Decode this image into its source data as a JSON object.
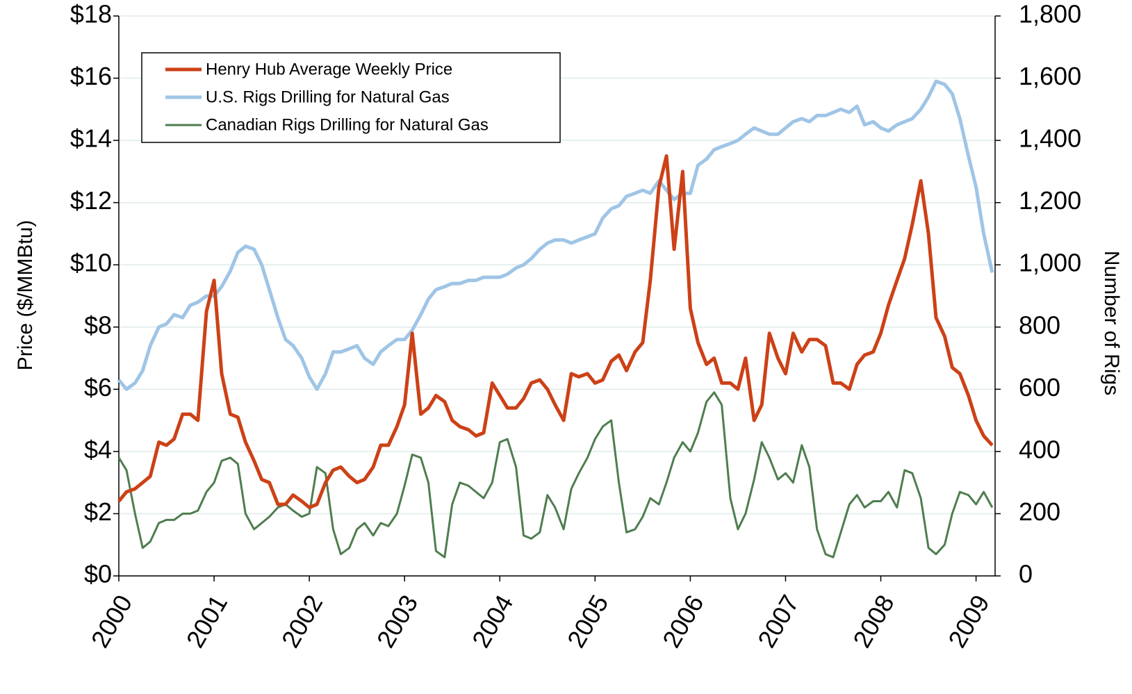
{
  "chart_data": {
    "type": "line",
    "ylabel": "Price ($/MMBtu)",
    "y2label": "Number of Rigs",
    "xlim": [
      2000,
      2009.2
    ],
    "xticks": [
      2000,
      2001,
      2002,
      2003,
      2004,
      2005,
      2006,
      2007,
      2008,
      2009
    ],
    "ylim": [
      0,
      18
    ],
    "yticks": [
      {
        "value": 0,
        "label": "$0"
      },
      {
        "value": 2,
        "label": "$2"
      },
      {
        "value": 4,
        "label": "$4"
      },
      {
        "value": 6,
        "label": "$6"
      },
      {
        "value": 8,
        "label": "$8"
      },
      {
        "value": 10,
        "label": "$10"
      },
      {
        "value": 12,
        "label": "$12"
      },
      {
        "value": 14,
        "label": "$14"
      },
      {
        "value": 16,
        "label": "$16"
      },
      {
        "value": 18,
        "label": "$18"
      }
    ],
    "y2lim": [
      0,
      1800
    ],
    "y2ticks": [
      0,
      200,
      400,
      600,
      800,
      {
        "value": 1000,
        "label": "1,000"
      },
      {
        "value": 1200,
        "label": "1,200"
      },
      {
        "value": 1400,
        "label": "1,400"
      },
      {
        "value": 1600,
        "label": "1,600"
      },
      {
        "value": 1800,
        "label": "1,800"
      }
    ],
    "grid": true,
    "legend": "upper-left",
    "x": [
      2000,
      2000.08,
      2000.17,
      2000.25,
      2000.33,
      2000.42,
      2000.5,
      2000.58,
      2000.67,
      2000.75,
      2000.83,
      2000.92,
      2001,
      2001.08,
      2001.17,
      2001.25,
      2001.33,
      2001.42,
      2001.5,
      2001.58,
      2001.67,
      2001.75,
      2001.83,
      2001.92,
      2002,
      2002.08,
      2002.17,
      2002.25,
      2002.33,
      2002.42,
      2002.5,
      2002.58,
      2002.67,
      2002.75,
      2002.83,
      2002.92,
      2003,
      2003.08,
      2003.17,
      2003.25,
      2003.33,
      2003.42,
      2003.5,
      2003.58,
      2003.67,
      2003.75,
      2003.83,
      2003.92,
      2004,
      2004.08,
      2004.17,
      2004.25,
      2004.33,
      2004.42,
      2004.5,
      2004.58,
      2004.67,
      2004.75,
      2004.83,
      2004.92,
      2005,
      2005.08,
      2005.17,
      2005.25,
      2005.33,
      2005.42,
      2005.5,
      2005.58,
      2005.67,
      2005.75,
      2005.83,
      2005.92,
      2006,
      2006.08,
      2006.17,
      2006.25,
      2006.33,
      2006.42,
      2006.5,
      2006.58,
      2006.67,
      2006.75,
      2006.83,
      2006.92,
      2007,
      2007.08,
      2007.17,
      2007.25,
      2007.33,
      2007.42,
      2007.5,
      2007.58,
      2007.67,
      2007.75,
      2007.83,
      2007.92,
      2008,
      2008.08,
      2008.17,
      2008.25,
      2008.33,
      2008.42,
      2008.5,
      2008.58,
      2008.67,
      2008.75,
      2008.83,
      2008.92,
      2009,
      2009.08,
      2009.17
    ],
    "series": [
      {
        "name": "Henry Hub Average Weekly Price",
        "color": "#cc4117",
        "width": 5,
        "values": [
          2.4,
          2.7,
          2.8,
          3.0,
          3.2,
          4.3,
          4.2,
          4.4,
          5.2,
          5.2,
          5.0,
          8.5,
          9.5,
          6.5,
          5.2,
          5.1,
          4.3,
          3.7,
          3.1,
          3.0,
          2.3,
          2.3,
          2.6,
          2.4,
          2.2,
          2.3,
          3.0,
          3.4,
          3.5,
          3.2,
          3.0,
          3.1,
          3.5,
          4.2,
          4.2,
          4.8,
          5.5,
          7.8,
          5.2,
          5.4,
          5.8,
          5.6,
          5.0,
          4.8,
          4.7,
          4.5,
          4.6,
          6.2,
          5.8,
          5.4,
          5.4,
          5.7,
          6.2,
          6.3,
          6.0,
          5.5,
          5.0,
          6.5,
          6.4,
          6.5,
          6.2,
          6.3,
          6.9,
          7.1,
          6.6,
          7.2,
          7.5,
          9.5,
          12.5,
          13.5,
          10.5,
          13.0,
          8.6,
          7.5,
          6.8,
          7.0,
          6.2,
          6.2,
          6.0,
          7.0,
          5.0,
          5.5,
          7.8,
          7.0,
          6.5,
          7.8,
          7.2,
          7.6,
          7.6,
          7.4,
          6.2,
          6.2,
          6.0,
          6.8,
          7.1,
          7.2,
          7.8,
          8.7,
          9.5,
          10.2,
          11.3,
          12.7,
          11.0,
          8.3,
          7.7,
          6.7,
          6.5,
          5.8,
          5.0,
          4.5,
          4.2
        ]
      },
      {
        "name": "U.S. Rigs Drilling for Natural Gas",
        "color": "#9fc5e6",
        "width": 5,
        "axis": "y2",
        "values": [
          630,
          600,
          620,
          660,
          740,
          800,
          810,
          840,
          830,
          870,
          880,
          900,
          900,
          930,
          980,
          1040,
          1060,
          1050,
          1000,
          920,
          830,
          760,
          740,
          700,
          640,
          600,
          650,
          720,
          720,
          730,
          740,
          700,
          680,
          720,
          740,
          760,
          760,
          790,
          840,
          890,
          920,
          930,
          940,
          940,
          950,
          950,
          960,
          960,
          960,
          970,
          990,
          1000,
          1020,
          1050,
          1070,
          1080,
          1080,
          1070,
          1080,
          1090,
          1100,
          1150,
          1180,
          1190,
          1220,
          1230,
          1240,
          1230,
          1270,
          1240,
          1210,
          1230,
          1230,
          1320,
          1340,
          1370,
          1380,
          1390,
          1400,
          1420,
          1440,
          1430,
          1420,
          1420,
          1440,
          1460,
          1470,
          1460,
          1480,
          1480,
          1490,
          1500,
          1490,
          1510,
          1450,
          1460,
          1440,
          1430,
          1450,
          1460,
          1470,
          1500,
          1540,
          1590,
          1580,
          1550,
          1470,
          1350,
          1250,
          1100,
          975
        ]
      },
      {
        "name": "Canadian Rigs Drilling for Natural Gas",
        "color": "#4f7d4f",
        "width": 3,
        "axis": "y2",
        "values": [
          380,
          340,
          200,
          90,
          110,
          170,
          180,
          180,
          200,
          200,
          210,
          270,
          300,
          370,
          380,
          360,
          200,
          150,
          170,
          190,
          220,
          230,
          210,
          190,
          200,
          350,
          330,
          150,
          70,
          90,
          150,
          170,
          130,
          170,
          160,
          200,
          290,
          390,
          380,
          300,
          80,
          60,
          230,
          300,
          290,
          270,
          250,
          300,
          430,
          440,
          350,
          130,
          120,
          140,
          260,
          220,
          150,
          280,
          330,
          380,
          440,
          480,
          500,
          300,
          140,
          150,
          190,
          250,
          230,
          300,
          380,
          430,
          400,
          460,
          560,
          590,
          550,
          250,
          150,
          200,
          310,
          430,
          380,
          310,
          330,
          300,
          420,
          350,
          150,
          70,
          60,
          140,
          230,
          260,
          220,
          240,
          240,
          270,
          220,
          340,
          330,
          250,
          90,
          70,
          100,
          200,
          270,
          260,
          230,
          270,
          220
        ]
      }
    ]
  }
}
